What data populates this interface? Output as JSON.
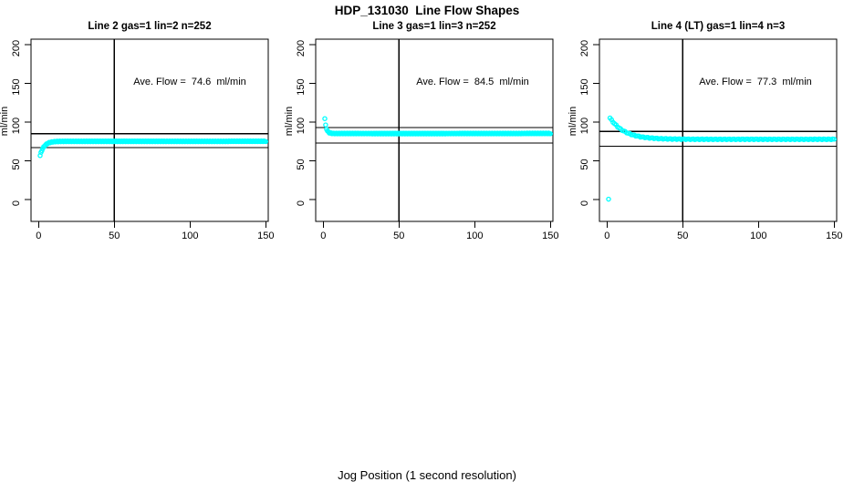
{
  "chart_data": {
    "type": "scatter",
    "title": "HDP_131030  Line Flow Shapes",
    "xlabel": "Jog Position (1 second resolution)",
    "ylabel": "ml/min",
    "x_ticks": [
      0,
      50,
      100,
      150
    ],
    "y_ticks": [
      0,
      50,
      100,
      150,
      200
    ],
    "xlim": [
      -5,
      152
    ],
    "ylim": [
      -28,
      207
    ],
    "grid": false,
    "marker": "open-circle",
    "marker_color": "#00FFFF",
    "axis_color": "#000000",
    "background_color": "#FFFFFF",
    "panels": [
      {
        "title": "Line 2 gas=1 lin=2 n=252",
        "annotation": "Ave. Flow =  74.6  ml/min",
        "ave_flow_ml_min": 74.6,
        "n": 252,
        "vline_x": 50,
        "reference_lines_y": [
          67,
          85
        ],
        "series": {
          "shape": "exp-approach",
          "x_start": 1,
          "x_end": 150,
          "n_points": 252,
          "start_y": 56.7,
          "plateau_y": 75.2,
          "tau": 2.6
        }
      },
      {
        "title": "Line 3 gas=1 lin=3 n=252",
        "annotation": "Ave. Flow =  84.5  ml/min",
        "ave_flow_ml_min": 84.5,
        "n": 252,
        "vline_x": 50,
        "reference_lines_y": [
          73,
          93
        ],
        "series": {
          "shape": "exp-approach",
          "x_start": 1,
          "x_end": 150,
          "n_points": 252,
          "start_y": 104.5,
          "plateau_y": 85.3,
          "tau": 1.0
        }
      },
      {
        "title": "Line 4 (LT) gas=1 lin=4 n=3",
        "annotation": "Ave. Flow =  77.3  ml/min",
        "ave_flow_ml_min": 77.3,
        "n": 3,
        "vline_x": 50,
        "reference_lines_y": [
          69,
          88
        ],
        "outlier_point": {
          "x": 1,
          "y": 0.5
        },
        "series": {
          "shape": "exp-approach",
          "x_start": 2,
          "x_end": 150,
          "n_points": 149,
          "start_y": 105.3,
          "plateau_y": 77.8,
          "tau": 9.5
        }
      }
    ]
  }
}
